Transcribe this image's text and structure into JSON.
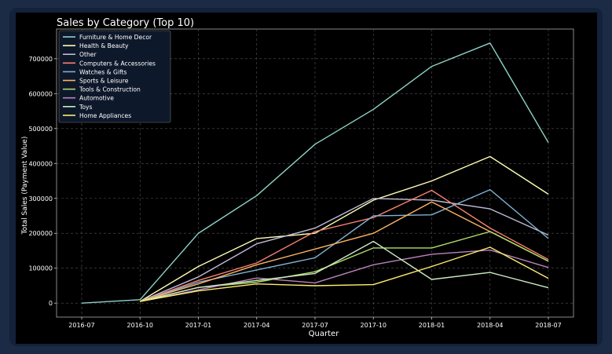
{
  "chart_data": {
    "type": "line",
    "title": "Sales by Category (Top 10)",
    "xlabel": "Quarter",
    "ylabel": "Total Sales (Payment Value)",
    "categories": [
      "2016-07",
      "2016-10",
      "2017-01",
      "2017-04",
      "2017-07",
      "2017-10",
      "2018-01",
      "2018-04",
      "2018-07"
    ],
    "yticks": [
      0,
      100000,
      200000,
      300000,
      400000,
      500000,
      600000,
      700000
    ],
    "ylim": [
      -40000,
      785000
    ],
    "grid": true,
    "legend_position": "top-left",
    "series": [
      {
        "name": "Furniture & Home Decor",
        "color": "#8dd3c7",
        "values": [
          0,
          10000,
          200000,
          308000,
          455000,
          555000,
          678000,
          745000,
          460000
        ]
      },
      {
        "name": "Health & Beauty",
        "color": "#feffb3",
        "values": [
          null,
          5000,
          105000,
          185000,
          200000,
          295000,
          350000,
          420000,
          312000
        ]
      },
      {
        "name": "Other",
        "color": "#bfbbd9",
        "values": [
          null,
          5000,
          75000,
          170000,
          215000,
          300000,
          295000,
          270000,
          195000
        ]
      },
      {
        "name": "Computers & Accessories",
        "color": "#fa8174",
        "values": [
          null,
          5000,
          65000,
          115000,
          205000,
          245000,
          323000,
          215000,
          125000
        ]
      },
      {
        "name": "Watches & Gifts",
        "color": "#81b1d2",
        "values": [
          null,
          5000,
          60000,
          95000,
          130000,
          250000,
          253000,
          325000,
          185000
        ]
      },
      {
        "name": "Sports & Leisure",
        "color": "#fdb462",
        "values": [
          null,
          5000,
          55000,
          110000,
          155000,
          200000,
          290000,
          205000,
          120000
        ]
      },
      {
        "name": "Tools & Construction",
        "color": "#b3de69",
        "values": [
          null,
          5000,
          45000,
          60000,
          90000,
          158000,
          158000,
          205000,
          120000
        ]
      },
      {
        "name": "Automotive",
        "color": "#bc82bd",
        "values": [
          null,
          5000,
          38000,
          72000,
          58000,
          110000,
          140000,
          152000,
          102000
        ]
      },
      {
        "name": "Toys",
        "color": "#ccebc4",
        "values": [
          null,
          5000,
          45000,
          65000,
          85000,
          177000,
          68000,
          88000,
          44000
        ]
      },
      {
        "name": "Home Appliances",
        "color": "#ffed6f",
        "values": [
          null,
          5000,
          35000,
          55000,
          50000,
          53000,
          105000,
          160000,
          71000
        ]
      }
    ]
  }
}
